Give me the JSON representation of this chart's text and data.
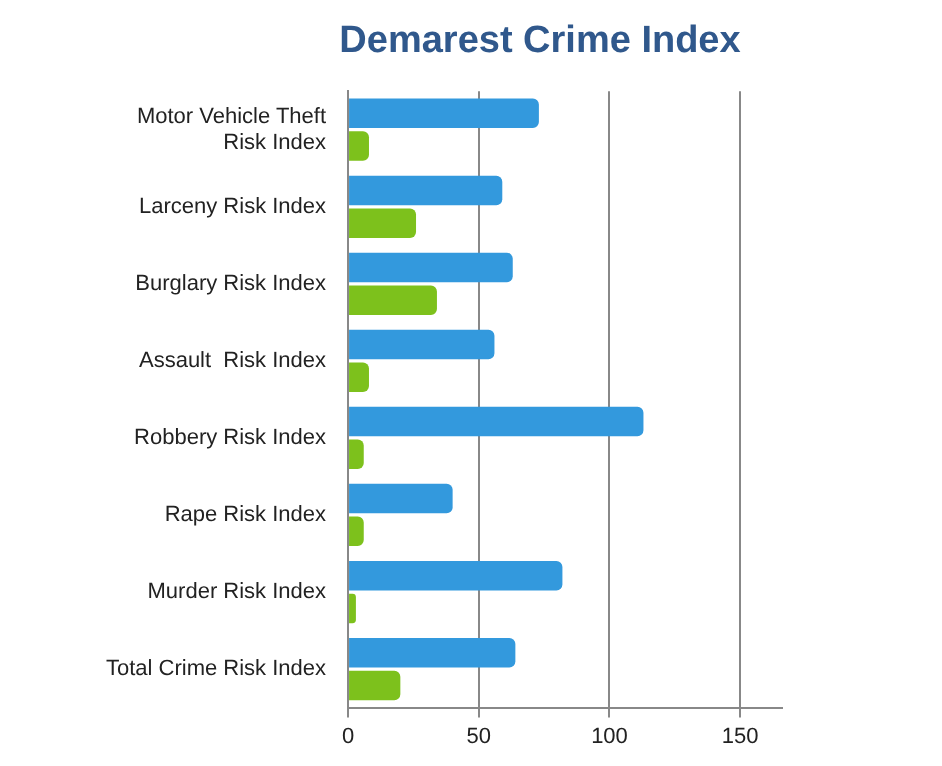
{
  "chart_data": {
    "type": "bar",
    "orientation": "horizontal",
    "title": "Demarest Crime Index",
    "categories": [
      "Motor Vehicle Theft Risk Index",
      "Larceny Risk Index",
      "Burglary Risk Index",
      "Assault  Risk Index",
      "Robbery Risk Index",
      "Rape Risk Index",
      "Murder Risk Index",
      "Total Crime Risk Index"
    ],
    "series": [
      {
        "color": "#3399dd",
        "values": [
          73,
          59,
          63,
          56,
          113,
          40,
          82,
          64
        ]
      },
      {
        "color": "#7dc11c",
        "values": [
          8,
          26,
          34,
          8,
          6,
          6,
          3,
          20
        ]
      }
    ],
    "xlim": [
      0,
      166
    ],
    "xticks": [
      0,
      50,
      100,
      150
    ],
    "grid": "x",
    "legend": false
  }
}
